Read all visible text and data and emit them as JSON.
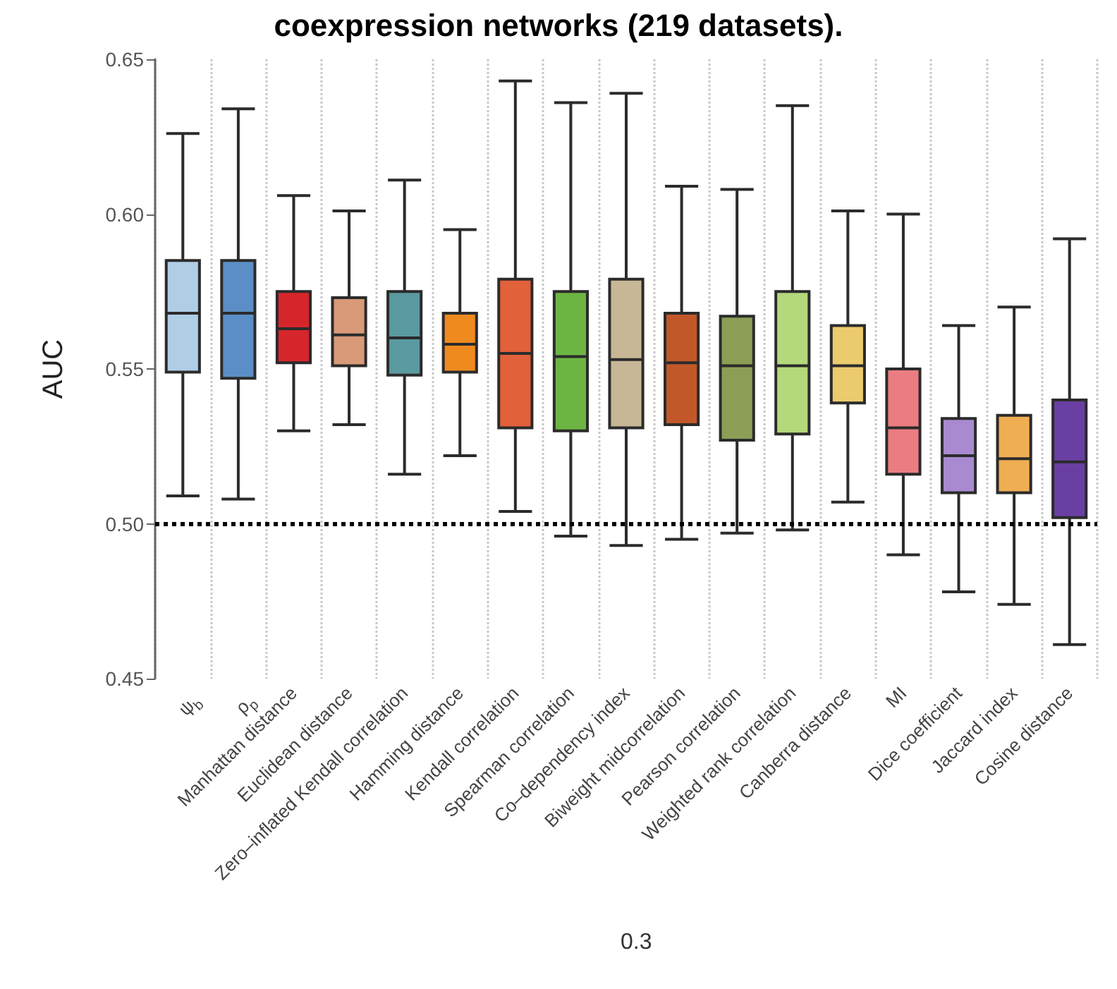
{
  "chart_data": {
    "type": "box",
    "title": "coexpression networks (219 datasets).",
    "ylabel": "AUC",
    "categories": [
      "ψ$_{b}$",
      "ρ$_{p}$",
      "Manhattan distance",
      "Euclidean distance",
      "Zero–inflated Kendall correlation",
      "Hamming distance",
      "Kendall correlation",
      "Spearman correlation",
      "Co–dependency index",
      "Biweight midcorrelation",
      "Pearson correlation",
      "Weighted rank correlation",
      "Canberra distance",
      "MI",
      "Dice coefficient",
      "Jaccard index",
      "Cosine distance"
    ],
    "colors": [
      "#b0cde6",
      "#5b8ec6",
      "#d7262b",
      "#d89a78",
      "#5a9aa0",
      "#ef8a1e",
      "#e2603a",
      "#6cb542",
      "#c7b796",
      "#c2582a",
      "#8c9e55",
      "#b3d97a",
      "#ecca6e",
      "#eb7d82",
      "#a98ad0",
      "#f0ae52",
      "#6a3fa3"
    ],
    "boxes": [
      {
        "low": 0.509,
        "q1": 0.549,
        "median": 0.568,
        "q3": 0.585,
        "high": 0.626
      },
      {
        "low": 0.508,
        "q1": 0.547,
        "median": 0.568,
        "q3": 0.585,
        "high": 0.634
      },
      {
        "low": 0.53,
        "q1": 0.552,
        "median": 0.563,
        "q3": 0.575,
        "high": 0.606
      },
      {
        "low": 0.532,
        "q1": 0.551,
        "median": 0.561,
        "q3": 0.573,
        "high": 0.601
      },
      {
        "low": 0.516,
        "q1": 0.548,
        "median": 0.56,
        "q3": 0.575,
        "high": 0.611
      },
      {
        "low": 0.522,
        "q1": 0.549,
        "median": 0.558,
        "q3": 0.568,
        "high": 0.595
      },
      {
        "low": 0.504,
        "q1": 0.531,
        "median": 0.555,
        "q3": 0.579,
        "high": 0.643
      },
      {
        "low": 0.496,
        "q1": 0.53,
        "median": 0.554,
        "q3": 0.575,
        "high": 0.636
      },
      {
        "low": 0.493,
        "q1": 0.531,
        "median": 0.553,
        "q3": 0.579,
        "high": 0.639
      },
      {
        "low": 0.495,
        "q1": 0.532,
        "median": 0.552,
        "q3": 0.568,
        "high": 0.609
      },
      {
        "low": 0.497,
        "q1": 0.527,
        "median": 0.551,
        "q3": 0.567,
        "high": 0.608
      },
      {
        "low": 0.498,
        "q1": 0.529,
        "median": 0.551,
        "q3": 0.575,
        "high": 0.635
      },
      {
        "low": 0.507,
        "q1": 0.539,
        "median": 0.551,
        "q3": 0.564,
        "high": 0.601
      },
      {
        "low": 0.49,
        "q1": 0.516,
        "median": 0.531,
        "q3": 0.55,
        "high": 0.6
      },
      {
        "low": 0.478,
        "q1": 0.51,
        "median": 0.522,
        "q3": 0.534,
        "high": 0.564
      },
      {
        "low": 0.474,
        "q1": 0.51,
        "median": 0.521,
        "q3": 0.535,
        "high": 0.57
      },
      {
        "low": 0.461,
        "q1": 0.502,
        "median": 0.52,
        "q3": 0.54,
        "high": 0.592
      }
    ],
    "ylim": [
      0.45,
      0.65
    ],
    "yticks": [
      {
        "value": 0.45,
        "label": "0.45"
      },
      {
        "value": 0.5,
        "label": "0.50"
      },
      {
        "value": 0.55,
        "label": "0.55"
      },
      {
        "value": 0.6,
        "label": "0.60"
      },
      {
        "value": 0.65,
        "label": "0.65"
      }
    ],
    "ref_lines": [
      {
        "axis": "y",
        "value": 0.5,
        "color": "#000000",
        "line_style": "dotted"
      }
    ],
    "grid": "x",
    "annotations": [
      "0.3"
    ]
  }
}
